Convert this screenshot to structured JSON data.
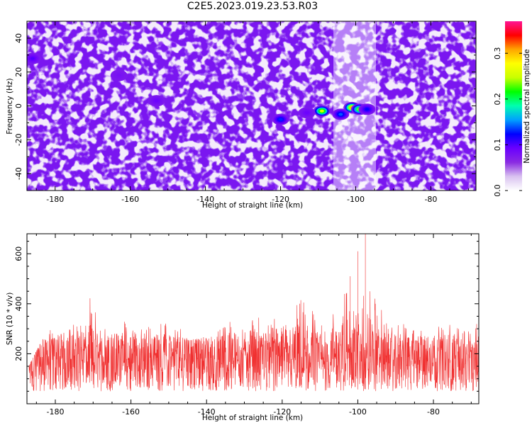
{
  "title": "C2E5.2023.019.23.53.R03",
  "chart_data": [
    {
      "type": "heatmap",
      "xlabel": "Height of straight line (km)",
      "ylabel": "Frequency (Hz)",
      "xlim": [
        -187.5,
        -68
      ],
      "ylim": [
        -50,
        50
      ],
      "x_ticks": [
        -180,
        -160,
        -140,
        -120,
        -100,
        -80
      ],
      "y_ticks": [
        -40,
        -20,
        0,
        20,
        40
      ],
      "colorbar": {
        "label": "Normalized spectral amplitude",
        "range": [
          0,
          0.37
        ],
        "ticks": [
          0.0,
          0.1,
          0.2,
          0.3
        ],
        "colormap": [
          "#ffffff",
          "#d9c2f0",
          "#8a2be2",
          "#6a00ff",
          "#0000ff",
          "#00a0ff",
          "#00ffb0",
          "#00ff00",
          "#c8ff00",
          "#ffff00",
          "#ffa500",
          "#ff0000",
          "#ff1493"
        ]
      },
      "hot_spots": [
        {
          "x": -120,
          "y": -8,
          "value": 0.13
        },
        {
          "x": -113,
          "y": -4,
          "value": 0.09
        },
        {
          "x": -109,
          "y": -3,
          "value": 0.26
        },
        {
          "x": -104,
          "y": -5,
          "value": 0.14
        },
        {
          "x": -101,
          "y": -1,
          "value": 0.3
        },
        {
          "x": -99,
          "y": -2,
          "value": 0.24
        },
        {
          "x": -97,
          "y": -2,
          "value": 0.12
        },
        {
          "x": -153,
          "y": 3,
          "value": 0.09
        },
        {
          "x": -186,
          "y": 28,
          "value": 0.1
        },
        {
          "x": -163,
          "y": 18,
          "value": 0.08
        }
      ]
    },
    {
      "type": "line",
      "xlabel": "Height of straight line (km)",
      "ylabel": "SNR (10 * v/v)",
      "xlim": [
        -187.5,
        -68
      ],
      "ylim": [
        0,
        680
      ],
      "x_ticks": [
        -180,
        -160,
        -140,
        -120,
        -100,
        -80
      ],
      "y_ticks": [
        200,
        400,
        600
      ],
      "color": "#f03030",
      "series": [
        {
          "x": [
            -187,
            -182,
            -179,
            -174,
            -171,
            -166,
            -161,
            -157,
            -152,
            -147,
            -142,
            -137,
            -131,
            -126,
            -122,
            -118,
            -115,
            -110,
            -107,
            -104,
            -102,
            -101,
            -100,
            -99,
            -98,
            -97,
            -94,
            -92,
            -89,
            -86,
            -80,
            -75,
            -72,
            -69
          ],
          "y": [
            150,
            300,
            280,
            330,
            440,
            320,
            340,
            300,
            330,
            300,
            260,
            300,
            370,
            350,
            340,
            390,
            430,
            360,
            390,
            440,
            510,
            450,
            610,
            430,
            680,
            480,
            390,
            310,
            330,
            300,
            310,
            320,
            370,
            320
          ]
        }
      ],
      "baseline_band": [
        50,
        250
      ]
    }
  ]
}
